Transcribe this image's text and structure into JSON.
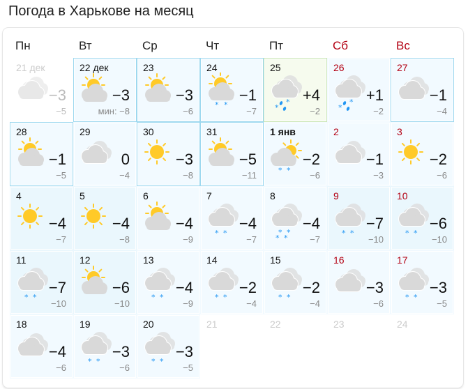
{
  "title": "Погода в Харькове на месяц",
  "colors": {
    "weekend": "#b30012",
    "sun": "#ffca28",
    "cloud": "#d9d9d9",
    "snow": "#2196f3"
  },
  "weekdays": [
    {
      "label": "Пн"
    },
    {
      "label": "Вт"
    },
    {
      "label": "Ср"
    },
    {
      "label": "Чт"
    },
    {
      "label": "Пт"
    },
    {
      "label": "Сб",
      "weekend": true
    },
    {
      "label": "Вс",
      "weekend": true
    }
  ],
  "days": [
    {
      "date": "21 дек",
      "icon": "cloudy",
      "day": "−3",
      "night": "−5",
      "past": true
    },
    {
      "date": "22 дек",
      "icon": "partly-cloudy",
      "day": "−3",
      "night": "мин: −8",
      "border": "b"
    },
    {
      "date": "23",
      "icon": "partly-cloudy",
      "day": "−3",
      "night": "−6",
      "border": "b"
    },
    {
      "date": "24",
      "icon": "partly-cloudy-snow",
      "day": "−1",
      "night": "−7",
      "border": "b"
    },
    {
      "date": "25",
      "icon": "cloudy-rain-snow",
      "day": "+4",
      "night": "−2",
      "border": "g"
    },
    {
      "date": "26",
      "icon": "cloudy-rain-snow",
      "day": "+1",
      "night": "−2",
      "weekend": true
    },
    {
      "date": "27",
      "icon": "cloudy",
      "day": "−1",
      "night": "−4",
      "weekend": true,
      "border": "b"
    },
    {
      "date": "28",
      "icon": "partly-cloudy",
      "day": "−1",
      "night": "−5",
      "border": "b"
    },
    {
      "date": "29",
      "icon": "cloudy",
      "day": "0",
      "night": "−4"
    },
    {
      "date": "30",
      "icon": "sunny",
      "day": "−3",
      "night": "−8",
      "border": "b"
    },
    {
      "date": "31",
      "icon": "partly-cloudy",
      "day": "−5",
      "night": "−11",
      "border": "b"
    },
    {
      "date": "1 янв",
      "icon": "cloudy-sun-snow",
      "day": "−2",
      "night": "−6",
      "today": true
    },
    {
      "date": "2",
      "icon": "cloudy",
      "day": "−1",
      "night": "−3",
      "weekend": true
    },
    {
      "date": "3",
      "icon": "sunny",
      "day": "−2",
      "night": "−6",
      "weekend": true
    },
    {
      "date": "4",
      "icon": "sunny",
      "day": "−4",
      "night": "−7",
      "alt": true
    },
    {
      "date": "5",
      "icon": "sunny",
      "day": "−4",
      "night": "−8",
      "alt": true
    },
    {
      "date": "6",
      "icon": "partly-cloudy",
      "day": "−4",
      "night": "−9"
    },
    {
      "date": "7",
      "icon": "cloudy-snow",
      "day": "−4",
      "night": "−7"
    },
    {
      "date": "8",
      "icon": "cloudy-heavy-snow",
      "day": "−4",
      "night": "−7"
    },
    {
      "date": "9",
      "icon": "cloudy-snow",
      "day": "−7",
      "night": "−10",
      "weekend": true,
      "alt": true
    },
    {
      "date": "10",
      "icon": "cloudy-snow",
      "day": "−6",
      "night": "−10",
      "weekend": true,
      "alt": true
    },
    {
      "date": "11",
      "icon": "cloudy-snow",
      "day": "−7",
      "night": "−10",
      "alt": true
    },
    {
      "date": "12",
      "icon": "partly-cloudy",
      "day": "−6",
      "night": "−10",
      "alt": true
    },
    {
      "date": "13",
      "icon": "cloudy-snow",
      "day": "−4",
      "night": "−9"
    },
    {
      "date": "14",
      "icon": "cloudy-snow",
      "day": "−2",
      "night": "−4"
    },
    {
      "date": "15",
      "icon": "cloudy-snow",
      "day": "−2",
      "night": "−4"
    },
    {
      "date": "16",
      "icon": "cloudy",
      "day": "−3",
      "night": "−6",
      "weekend": true
    },
    {
      "date": "17",
      "icon": "cloudy-snow",
      "day": "−3",
      "night": "−5",
      "weekend": true
    },
    {
      "date": "18",
      "icon": "cloudy",
      "day": "−4",
      "night": "−6"
    },
    {
      "date": "19",
      "icon": "cloudy-snow",
      "day": "−3",
      "night": "−6"
    },
    {
      "date": "20",
      "icon": "cloudy-snow",
      "day": "−3",
      "night": "−5"
    },
    {
      "date": "21",
      "future": true
    },
    {
      "date": "22",
      "future": true
    },
    {
      "date": "23",
      "future": true
    },
    {
      "date": "24",
      "future": true
    }
  ]
}
